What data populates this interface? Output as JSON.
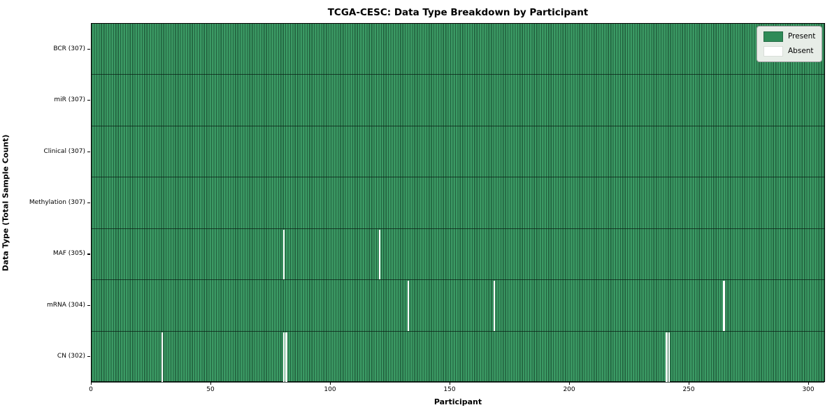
{
  "title": "TCGA-CESC: Data Type Breakdown by Participant",
  "x_axis": {
    "label": "Participant",
    "ticks": [
      0,
      50,
      100,
      150,
      200,
      250,
      300
    ],
    "min": 0,
    "max": 307
  },
  "y_axis": {
    "label": "Data Type (Total Sample Count)"
  },
  "legend": {
    "items": [
      {
        "label": "Present",
        "color": "#2e8b57"
      },
      {
        "label": "Absent",
        "color": "#ffffff"
      }
    ]
  },
  "colors": {
    "present": "#2e8b57",
    "present_stripe_dark": "#215f3d",
    "present_stripe_light": "#3b9a64",
    "absent": "#ffffff",
    "border": "#000000",
    "legend_background": "#e7ede7"
  },
  "chart_data": {
    "type": "heatmap",
    "title": "TCGA-CESC: Data Type Breakdown by Participant",
    "xlabel": "Participant",
    "ylabel": "Data Type (Total Sample Count)",
    "total_participants": 307,
    "x_ticks": [
      0,
      50,
      100,
      150,
      200,
      250,
      300
    ],
    "xlim": [
      0,
      307
    ],
    "grid": false,
    "legend_position": "upper right",
    "legend_entries": [
      "Present",
      "Absent"
    ],
    "value_encoding": {
      "present": "seagreen cell",
      "absent": "white cell"
    },
    "rows": [
      {
        "label": "BCR (307)",
        "data_type": "BCR",
        "present_count": 307,
        "absent_participants": []
      },
      {
        "label": "miR (307)",
        "data_type": "miR",
        "present_count": 307,
        "absent_participants": []
      },
      {
        "label": "Clinical (307)",
        "data_type": "Clinical",
        "present_count": 307,
        "absent_participants": []
      },
      {
        "label": "Methylation (307)",
        "data_type": "Methylation",
        "present_count": 307,
        "absent_participants": []
      },
      {
        "label": "MAF (305)",
        "data_type": "MAF",
        "present_count": 305,
        "absent_participants": [
          80,
          120
        ]
      },
      {
        "label": "mRNA (304)",
        "data_type": "mRNA",
        "present_count": 304,
        "absent_participants": [
          132,
          168,
          264
        ]
      },
      {
        "label": "CN (302)",
        "data_type": "CN",
        "present_count": 302,
        "absent_participants": [
          29,
          80,
          81,
          240,
          241
        ]
      }
    ]
  }
}
